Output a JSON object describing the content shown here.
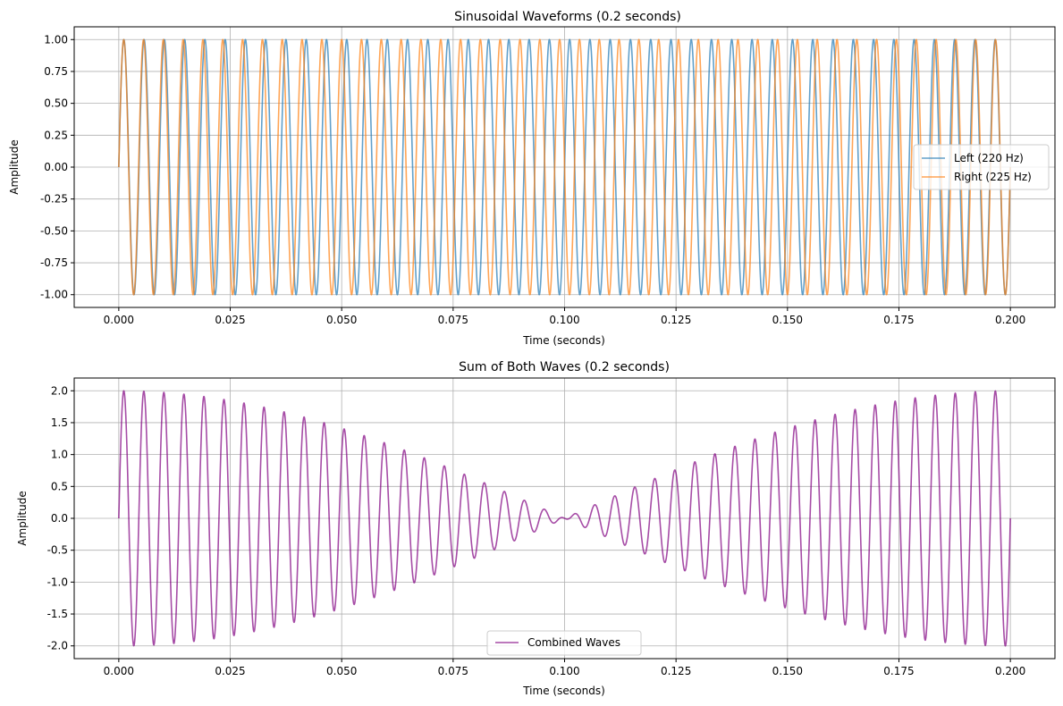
{
  "colors": {
    "left": "#1f77b4",
    "right": "#ff7f0e",
    "combined": "#800080",
    "grid": "#b0b0b0",
    "axes": "#000000"
  },
  "chart_data": [
    {
      "type": "line",
      "title": "Sinusoidal Waveforms (0.2 seconds)",
      "xlabel": "Time (seconds)",
      "ylabel": "Amplitude",
      "xlim": [
        -0.01,
        0.21
      ],
      "ylim": [
        -1.1,
        1.1
      ],
      "xticks": [
        "0.000",
        "0.025",
        "0.050",
        "0.075",
        "0.100",
        "0.125",
        "0.150",
        "0.175",
        "0.200"
      ],
      "yticks": [
        "-1.00",
        "-0.75",
        "-0.50",
        "-0.25",
        "0.00",
        "0.25",
        "0.50",
        "0.75",
        "1.00"
      ],
      "grid": true,
      "legend": "center-right",
      "series": [
        {
          "name": "Left (220 Hz)",
          "formula": "sin(2*pi*220*t)",
          "t_range": [
            0,
            0.2
          ],
          "alpha": 0.7
        },
        {
          "name": "Right (225 Hz)",
          "formula": "sin(2*pi*225*t)",
          "t_range": [
            0,
            0.2
          ],
          "alpha": 0.7
        }
      ]
    },
    {
      "type": "line",
      "title": "Sum of Both Waves (0.2 seconds)",
      "xlabel": "Time (seconds)",
      "ylabel": "Amplitude",
      "xlim": [
        -0.01,
        0.21
      ],
      "ylim": [
        -2.2,
        2.2
      ],
      "xticks": [
        "0.000",
        "0.025",
        "0.050",
        "0.075",
        "0.100",
        "0.125",
        "0.150",
        "0.175",
        "0.200"
      ],
      "yticks": [
        "-2.0",
        "-1.5",
        "-1.0",
        "-0.5",
        "0.0",
        "0.5",
        "1.0",
        "1.5",
        "2.0"
      ],
      "grid": true,
      "legend": "lower-center",
      "series": [
        {
          "name": "Combined Waves",
          "formula": "sin(2*pi*220*t)+sin(2*pi*225*t)",
          "t_range": [
            0,
            0.2
          ],
          "alpha": 0.7
        }
      ]
    }
  ]
}
